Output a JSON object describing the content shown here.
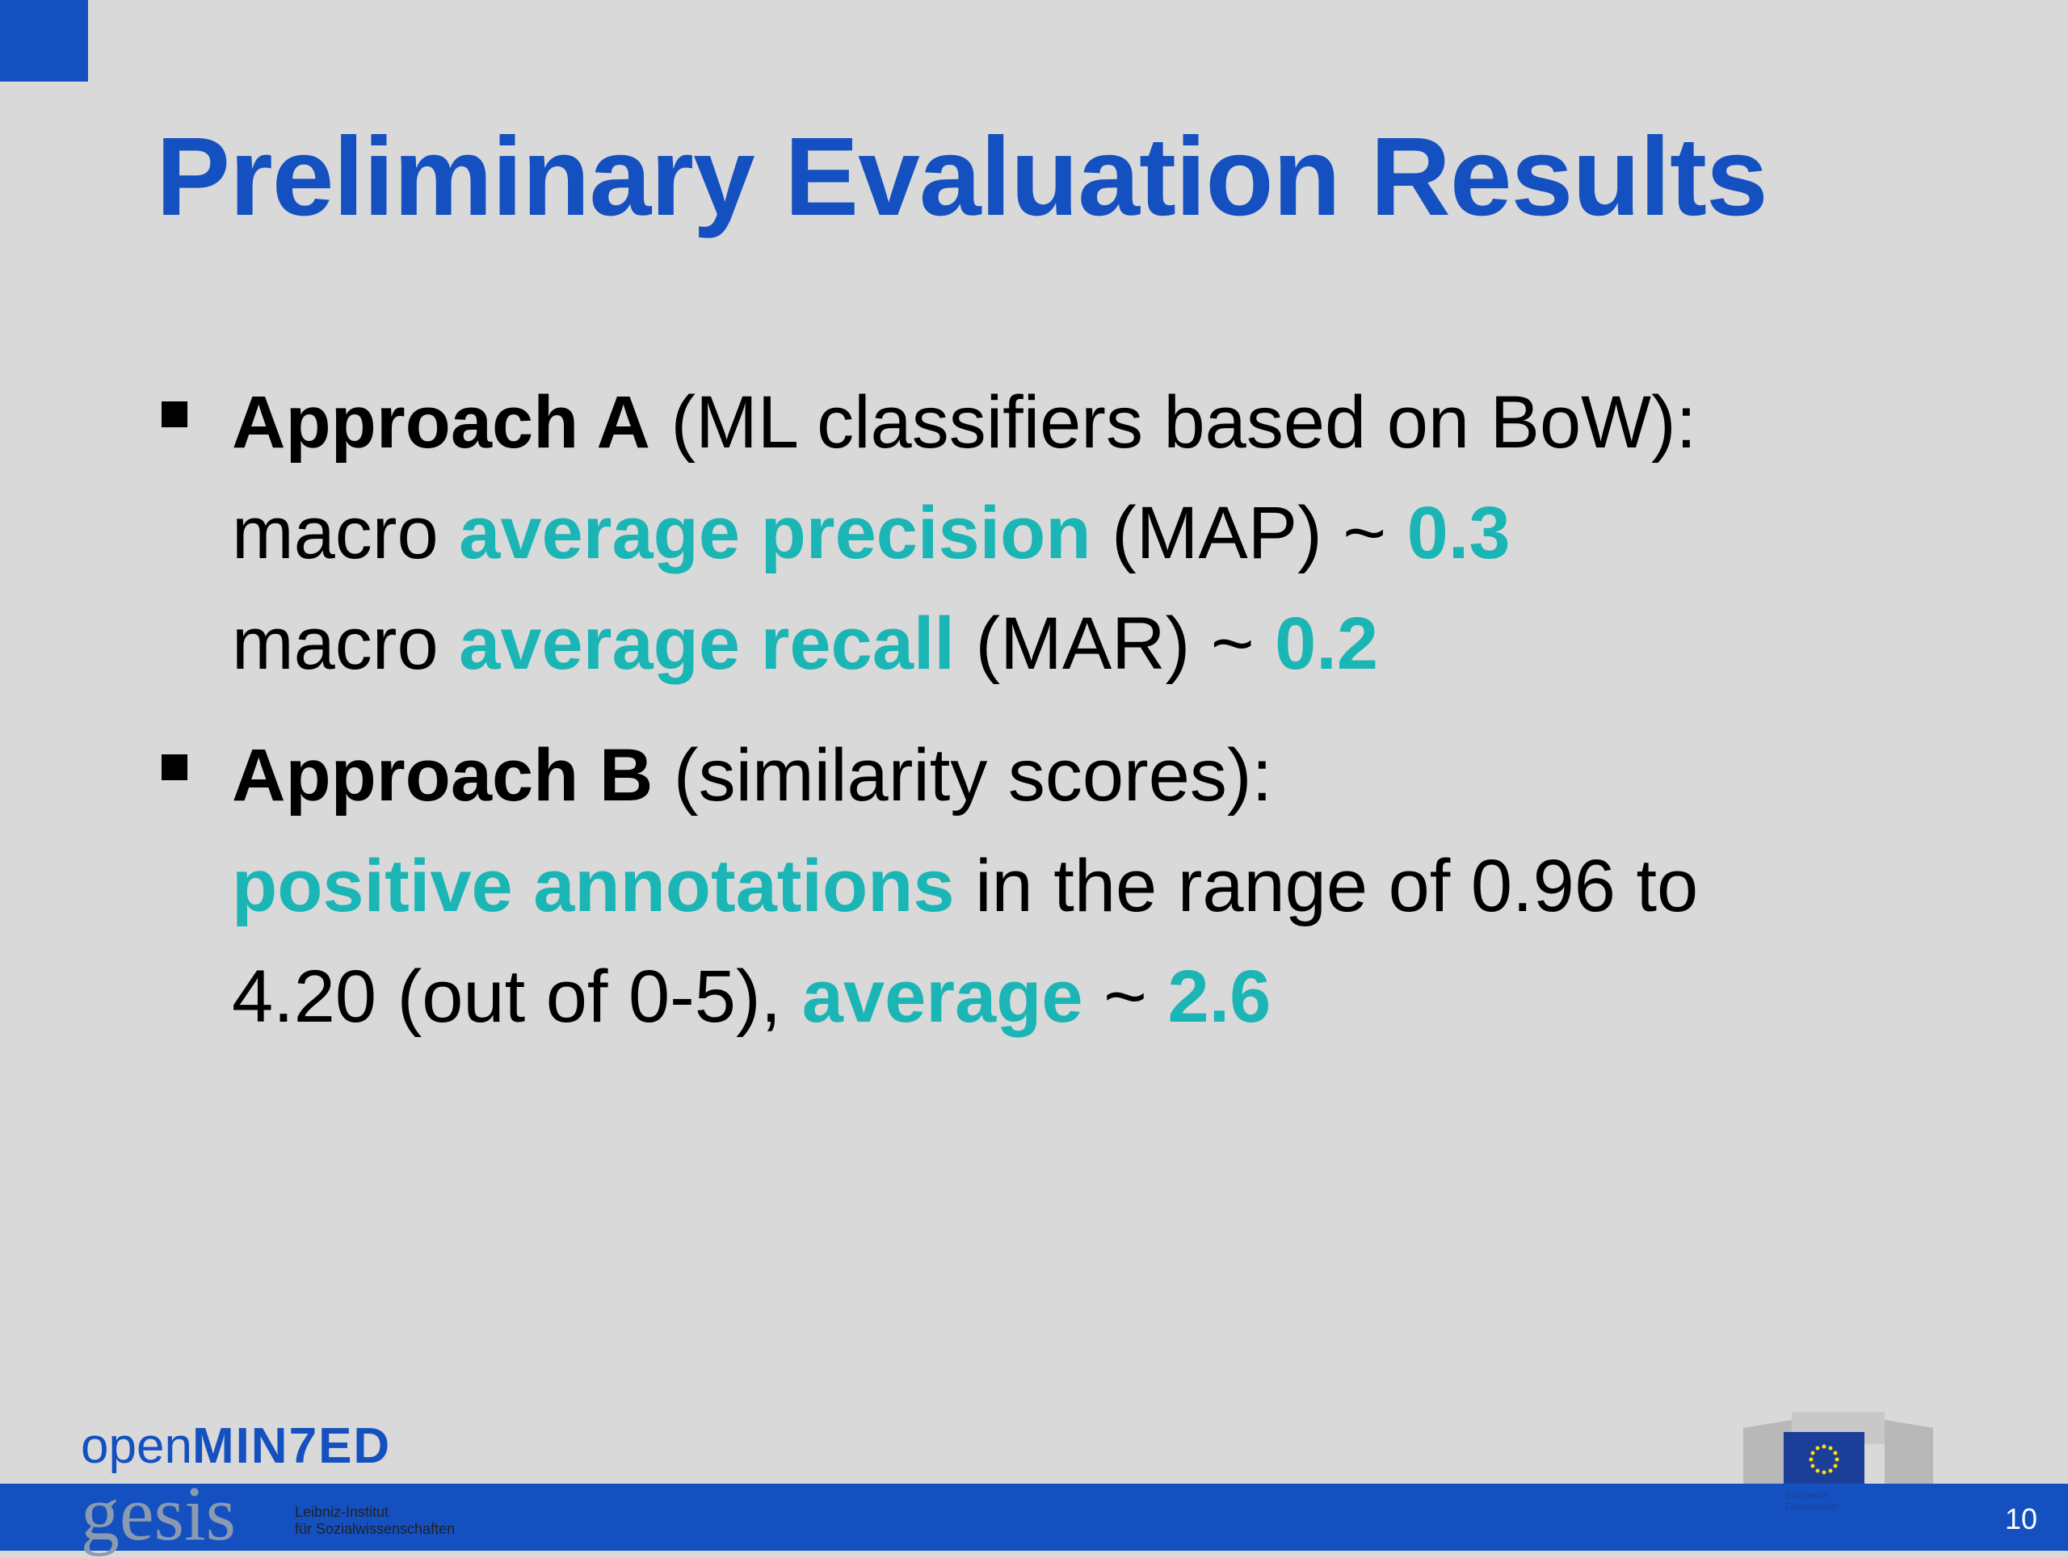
{
  "slide": {
    "title": "Preliminary Evaluation Results",
    "bullets": [
      {
        "lines": [
          [
            {
              "text": "Approach A",
              "style": "bold"
            },
            {
              "text": " (ML classifiers based on BoW):",
              "style": "plain"
            }
          ],
          [
            {
              "text": "macro ",
              "style": "plain"
            },
            {
              "text": "average precision",
              "style": "accent"
            },
            {
              "text": " (MAP) ~ ",
              "style": "plain"
            },
            {
              "text": "0.3",
              "style": "accent"
            }
          ],
          [
            {
              "text": "macro ",
              "style": "plain"
            },
            {
              "text": "average recall",
              "style": "accent"
            },
            {
              "text": " (MAR) ~ ",
              "style": "plain"
            },
            {
              "text": "0.2",
              "style": "accent"
            }
          ]
        ]
      },
      {
        "lines": [
          [
            {
              "text": "Approach B",
              "style": "bold"
            },
            {
              "text": " (similarity scores):",
              "style": "plain"
            }
          ],
          [
            {
              "text": "positive annotations",
              "style": "accent"
            },
            {
              "text": " in the range of 0.96 to",
              "style": "plain"
            }
          ],
          [
            {
              "text": "4.20 (out of 0-5), ",
              "style": "plain"
            },
            {
              "text": "average",
              "style": "accent"
            },
            {
              "text": " ~ ",
              "style": "plain"
            },
            {
              "text": "2.6",
              "style": "accent"
            }
          ]
        ]
      }
    ],
    "footer": {
      "logo_open": "open",
      "logo_minted": "MIN7ED",
      "gesis": "gesis",
      "gesis_line1": "Leibniz-Institut",
      "gesis_line2": "für Sozialwissenschaften",
      "eu_line1": "European",
      "eu_line2": "Commission",
      "page_number": "10"
    }
  }
}
